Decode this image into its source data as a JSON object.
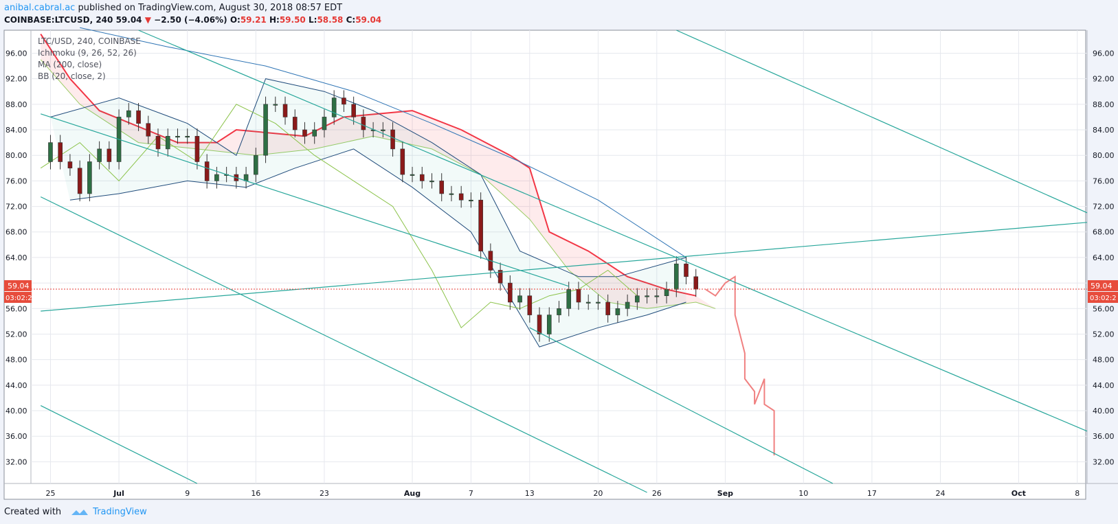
{
  "header": {
    "author": "anibal.cabral.ac",
    "published": "published on TradingView.com, August 30, 2018 08:57 EDT",
    "symbol": "COINBASE:LTCUSD, 240",
    "last": "59.04",
    "change": "−2.50 (−4.06%)",
    "o_label": "O:",
    "o": "59.21",
    "h_label": "H:",
    "h": "59.50",
    "l_label": "L:",
    "l": "58.58",
    "c_label": "C:",
    "c": "59.04"
  },
  "legend": {
    "title": "LTC/USD, 240, COINBASE",
    "items": [
      "Ichimoku (9, 26, 52, 26)",
      "MA (200, close)",
      "BB (20, close, 2)"
    ]
  },
  "price_badge": {
    "price": "59.04",
    "countdown": "03:02:2"
  },
  "footer": {
    "created_with": "Created with",
    "brand": "TradingView"
  },
  "colors": {
    "channel": "#26a69a",
    "cloud": "#f23645",
    "bb": "#1e4a7a",
    "ma": "#2c73b4",
    "lagging": "#8bc34a",
    "projection": "#f08080",
    "candle_up": "#2e6f44",
    "candle_down": "#8b1a1a"
  },
  "chart_data": {
    "type": "candlestick",
    "title": "LTC/USD, 240, COINBASE",
    "y_ticks": [
      32,
      36,
      40,
      44,
      48,
      52,
      56,
      60,
      64,
      68,
      72,
      76,
      80,
      84,
      88,
      92,
      96
    ],
    "ylim": [
      28.6,
      99.6
    ],
    "x_ticks": [
      "25",
      "Jul",
      "9",
      "16",
      "23",
      "Aug",
      "7",
      "13",
      "20",
      "26",
      "Sep",
      "10",
      "17",
      "24",
      "Oct",
      "8"
    ],
    "x_tick_dates": [
      "2018-06-25",
      "2018-07-02",
      "2018-07-09",
      "2018-07-16",
      "2018-07-23",
      "2018-08-01",
      "2018-08-07",
      "2018-08-13",
      "2018-08-20",
      "2018-08-26",
      "2018-09-02",
      "2018-09-10",
      "2018-09-17",
      "2018-09-24",
      "2018-10-02",
      "2018-10-08"
    ],
    "xlim": [
      "2018-06-23",
      "2018-10-09"
    ],
    "last_price": 59.04,
    "daily_close": [
      [
        "2018-06-24",
        79
      ],
      [
        "2018-06-25",
        82
      ],
      [
        "2018-06-26",
        79
      ],
      [
        "2018-06-27",
        78
      ],
      [
        "2018-06-28",
        74
      ],
      [
        "2018-06-29",
        79
      ],
      [
        "2018-06-30",
        81
      ],
      [
        "2018-07-01",
        79
      ],
      [
        "2018-07-02",
        86
      ],
      [
        "2018-07-03",
        87
      ],
      [
        "2018-07-04",
        85
      ],
      [
        "2018-07-05",
        83
      ],
      [
        "2018-07-06",
        81
      ],
      [
        "2018-07-07",
        83
      ],
      [
        "2018-07-08",
        83
      ],
      [
        "2018-07-09",
        83
      ],
      [
        "2018-07-10",
        79
      ],
      [
        "2018-07-11",
        76
      ],
      [
        "2018-07-12",
        77
      ],
      [
        "2018-07-13",
        77
      ],
      [
        "2018-07-14",
        76
      ],
      [
        "2018-07-15",
        77
      ],
      [
        "2018-07-16",
        80
      ],
      [
        "2018-07-17",
        88
      ],
      [
        "2018-07-18",
        88
      ],
      [
        "2018-07-19",
        86
      ],
      [
        "2018-07-20",
        84
      ],
      [
        "2018-07-21",
        83
      ],
      [
        "2018-07-22",
        84
      ],
      [
        "2018-07-23",
        86
      ],
      [
        "2018-07-24",
        89
      ],
      [
        "2018-07-25",
        88
      ],
      [
        "2018-07-26",
        86
      ],
      [
        "2018-07-27",
        84
      ],
      [
        "2018-07-28",
        84
      ],
      [
        "2018-07-29",
        84
      ],
      [
        "2018-07-30",
        81
      ],
      [
        "2018-07-31",
        77
      ],
      [
        "2018-08-01",
        77
      ],
      [
        "2018-08-02",
        76
      ],
      [
        "2018-08-03",
        76
      ],
      [
        "2018-08-04",
        74
      ],
      [
        "2018-08-05",
        74
      ],
      [
        "2018-08-06",
        73
      ],
      [
        "2018-08-07",
        73
      ],
      [
        "2018-08-08",
        65
      ],
      [
        "2018-08-09",
        62
      ],
      [
        "2018-08-10",
        60
      ],
      [
        "2018-08-11",
        57
      ],
      [
        "2018-08-12",
        58
      ],
      [
        "2018-08-13",
        55
      ],
      [
        "2018-08-14",
        52
      ],
      [
        "2018-08-15",
        55
      ],
      [
        "2018-08-16",
        56
      ],
      [
        "2018-08-17",
        59
      ],
      [
        "2018-08-18",
        57
      ],
      [
        "2018-08-19",
        57
      ],
      [
        "2018-08-20",
        57
      ],
      [
        "2018-08-21",
        55
      ],
      [
        "2018-08-22",
        56
      ],
      [
        "2018-08-23",
        57
      ],
      [
        "2018-08-24",
        58
      ],
      [
        "2018-08-25",
        58
      ],
      [
        "2018-08-26",
        58
      ],
      [
        "2018-08-27",
        59
      ],
      [
        "2018-08-28",
        63
      ],
      [
        "2018-08-29",
        61
      ],
      [
        "2018-08-30",
        59.04
      ]
    ],
    "bollinger_upper": [
      [
        "2018-06-25",
        86
      ],
      [
        "2018-07-02",
        89
      ],
      [
        "2018-07-09",
        85
      ],
      [
        "2018-07-14",
        80
      ],
      [
        "2018-07-17",
        92
      ],
      [
        "2018-07-23",
        90
      ],
      [
        "2018-07-28",
        87
      ],
      [
        "2018-08-03",
        82
      ],
      [
        "2018-08-08",
        77
      ],
      [
        "2018-08-12",
        65
      ],
      [
        "2018-08-18",
        61
      ],
      [
        "2018-08-22",
        61
      ],
      [
        "2018-08-29",
        64
      ]
    ],
    "bollinger_lower": [
      [
        "2018-06-27",
        73
      ],
      [
        "2018-07-02",
        74
      ],
      [
        "2018-07-09",
        76
      ],
      [
        "2018-07-15",
        75
      ],
      [
        "2018-07-20",
        78
      ],
      [
        "2018-07-26",
        81
      ],
      [
        "2018-08-01",
        75
      ],
      [
        "2018-08-07",
        68
      ],
      [
        "2018-08-14",
        50
      ],
      [
        "2018-08-20",
        53
      ],
      [
        "2018-08-25",
        55
      ],
      [
        "2018-08-29",
        57
      ]
    ],
    "ma_200": [
      [
        "2018-06-28",
        100
      ],
      [
        "2018-07-07",
        97
      ],
      [
        "2018-07-17",
        94
      ],
      [
        "2018-07-26",
        90
      ],
      [
        "2018-08-03",
        85
      ],
      [
        "2018-08-12",
        79
      ],
      [
        "2018-08-20",
        73
      ],
      [
        "2018-08-29",
        64
      ]
    ],
    "cloud_upper": [
      [
        "2018-06-24",
        99
      ],
      [
        "2018-06-27",
        92
      ],
      [
        "2018-06-30",
        87
      ],
      [
        "2018-07-08",
        82
      ],
      [
        "2018-07-12",
        82
      ],
      [
        "2018-07-14",
        84
      ],
      [
        "2018-07-21",
        83
      ],
      [
        "2018-07-25",
        86
      ],
      [
        "2018-08-01",
        87
      ],
      [
        "2018-08-06",
        84
      ],
      [
        "2018-08-11",
        80
      ],
      [
        "2018-08-13",
        78
      ],
      [
        "2018-08-15",
        68
      ],
      [
        "2018-08-19",
        65
      ],
      [
        "2018-08-21",
        63
      ],
      [
        "2018-08-23",
        61
      ],
      [
        "2018-08-25",
        60
      ],
      [
        "2018-08-27",
        59
      ],
      [
        "2018-08-30",
        58
      ]
    ],
    "cloud_lower": [
      [
        "2018-06-24",
        95
      ],
      [
        "2018-06-28",
        88
      ],
      [
        "2018-07-04",
        82
      ],
      [
        "2018-07-10",
        81
      ],
      [
        "2018-07-16",
        80
      ],
      [
        "2018-07-22",
        81
      ],
      [
        "2018-07-28",
        83
      ],
      [
        "2018-08-03",
        81
      ],
      [
        "2018-08-08",
        77
      ],
      [
        "2018-08-13",
        70
      ],
      [
        "2018-08-17",
        62
      ],
      [
        "2018-08-21",
        57
      ],
      [
        "2018-08-25",
        56
      ],
      [
        "2018-08-30",
        57
      ],
      [
        "2018-09-01",
        56
      ]
    ],
    "lagging_span": [
      [
        "2018-06-24",
        78
      ],
      [
        "2018-06-28",
        82
      ],
      [
        "2018-07-02",
        76
      ],
      [
        "2018-07-06",
        83
      ],
      [
        "2018-07-10",
        79
      ],
      [
        "2018-07-14",
        88
      ],
      [
        "2018-07-18",
        85
      ],
      [
        "2018-07-22",
        80
      ],
      [
        "2018-07-26",
        76
      ],
      [
        "2018-07-30",
        72
      ],
      [
        "2018-08-03",
        62
      ],
      [
        "2018-08-06",
        53
      ],
      [
        "2018-08-09",
        57
      ],
      [
        "2018-08-12",
        56
      ],
      [
        "2018-08-15",
        58
      ],
      [
        "2018-08-18",
        59
      ],
      [
        "2018-08-21",
        62
      ],
      [
        "2018-08-24",
        58
      ]
    ],
    "projection": [
      [
        "2018-08-31",
        59
      ],
      [
        "2018-09-01",
        58
      ],
      [
        "2018-09-02",
        60
      ],
      [
        "2018-09-03",
        61
      ],
      [
        "2018-09-03",
        55
      ],
      [
        "2018-09-04",
        49
      ],
      [
        "2018-09-04",
        45
      ],
      [
        "2018-09-05",
        43
      ],
      [
        "2018-09-05",
        41
      ],
      [
        "2018-09-06",
        45
      ],
      [
        "2018-09-06",
        41
      ],
      [
        "2018-09-07",
        40
      ],
      [
        "2018-09-07",
        33
      ]
    ],
    "trendlines": [
      {
        "from": [
          "2018-06-24",
          86.5
        ],
        "to": [
          "2018-08-17",
          59.5
        ]
      },
      {
        "from": [
          "2018-06-24",
          73.5
        ],
        "to": [
          "2018-08-25",
          27.2
        ]
      },
      {
        "from": [
          "2018-06-24",
          40.8
        ],
        "to": [
          "2018-07-10",
          28.6
        ]
      },
      {
        "from": [
          "2018-07-04",
          99.6
        ],
        "to": [
          "2018-10-09",
          36.8
        ]
      },
      {
        "from": [
          "2018-08-28",
          99.6
        ],
        "to": [
          "2018-10-09",
          71
        ]
      },
      {
        "from": [
          "2018-06-24",
          55.6
        ],
        "to": [
          "2018-10-09",
          69.5
        ]
      },
      {
        "from": [
          "2018-08-13",
          53
        ],
        "to": [
          "2018-09-13",
          28.6
        ]
      }
    ]
  }
}
